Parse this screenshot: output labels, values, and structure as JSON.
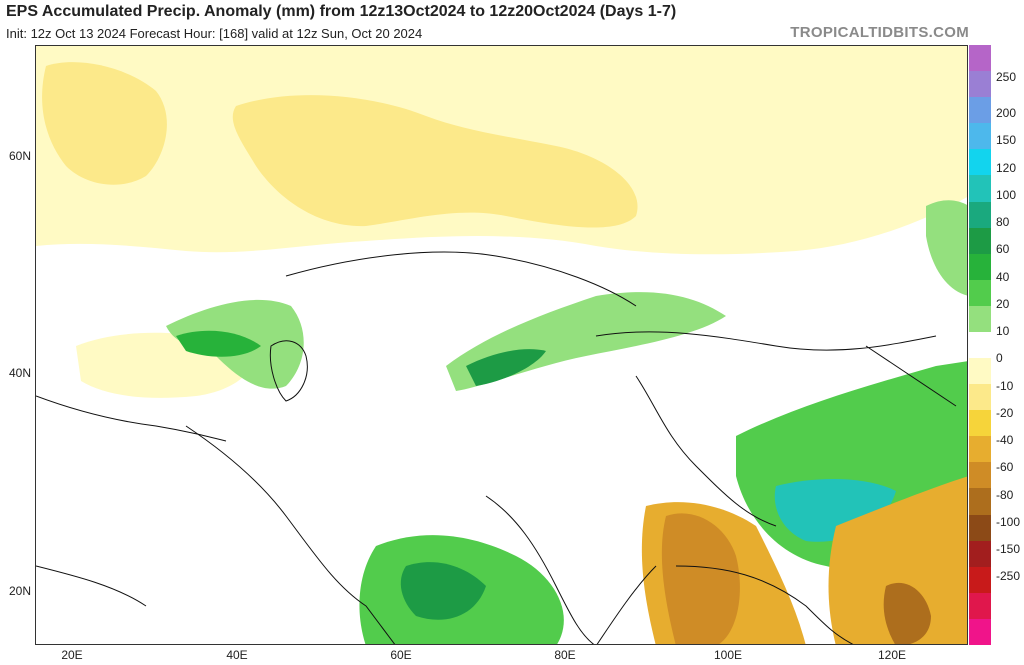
{
  "header": {
    "title": "EPS Accumulated Precip. Anomaly (mm) from 12z13Oct2024 to 12z20Oct2024 (Days 1-7)",
    "subtitle": "Init: 12z Oct 13 2024   Forecast Hour: [168]   valid at 12z Sun, Oct 20 2024",
    "brand": "TROPICALTIDBITS.COM"
  },
  "map": {
    "lat_labels": [
      "60N",
      "40N",
      "20N"
    ],
    "lon_labels": [
      "20E",
      "40E",
      "60E",
      "80E",
      "100E",
      "120E"
    ]
  },
  "colorbar": {
    "labels": [
      "250",
      "200",
      "150",
      "120",
      "100",
      "80",
      "60",
      "40",
      "20",
      "10",
      "0",
      "-10",
      "-20",
      "-40",
      "-60",
      "-80",
      "-100",
      "-150",
      "-250"
    ],
    "colors": [
      "#b565c8",
      "#9a7fd4",
      "#6b9ee6",
      "#4db8ec",
      "#12d4ee",
      "#22c3b8",
      "#1aa97e",
      "#1d9b45",
      "#27b23a",
      "#52cc4c",
      "#94e07e",
      "#ffffff",
      "#fffac4",
      "#fce98a",
      "#f6d43a",
      "#e7ad2f",
      "#cf8c26",
      "#ad6e1d",
      "#8c4a17",
      "#a21e1e",
      "#c81a1a",
      "#e0174c",
      "#f0148a"
    ]
  }
}
